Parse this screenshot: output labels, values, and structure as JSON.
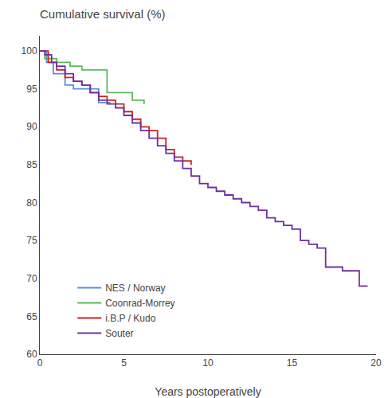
{
  "chart_data": {
    "type": "step",
    "title": "Cumulative survival (%)",
    "x_label": "Years postoperatively",
    "xlim": [
      0,
      20
    ],
    "ylim": [
      60,
      102
    ],
    "xticks": [
      0,
      5,
      10,
      15,
      20
    ],
    "yticks": [
      60,
      65,
      70,
      75,
      80,
      85,
      90,
      95,
      100
    ],
    "grid": false,
    "legend": "lower left",
    "series": [
      {
        "name": "NES / Norway",
        "color": "#5b8dd9",
        "x": [
          0,
          0.4,
          0.8,
          1.5,
          2.0,
          2.8,
          3.5,
          4.2
        ],
        "values": [
          100,
          98.5,
          97.0,
          95.5,
          95.0,
          95.0,
          93.2,
          93.2
        ]
      },
      {
        "name": "Coonrad-Morrey",
        "color": "#5cb85c",
        "x": [
          0,
          0.3,
          1.0,
          1.8,
          2.5,
          3.0,
          4.0,
          5.0,
          5.5,
          6.2
        ],
        "values": [
          100,
          99.0,
          98.5,
          98.0,
          97.5,
          97.5,
          94.5,
          94.5,
          93.5,
          93.0
        ]
      },
      {
        "name": "i.B.P / Kudo",
        "color": "#cc2222",
        "x": [
          0,
          0.5,
          1.0,
          1.5,
          2.0,
          2.5,
          3.0,
          3.5,
          4.0,
          4.5,
          5.0,
          5.5,
          6.0,
          6.5,
          7.0,
          7.5,
          8.0,
          8.5,
          9.0
        ],
        "values": [
          100,
          98.5,
          97.5,
          96.5,
          96.0,
          95.5,
          94.5,
          94.0,
          93.5,
          93.0,
          92.0,
          91.0,
          90.0,
          89.5,
          88.5,
          87.0,
          86.0,
          85.5,
          85.0
        ]
      },
      {
        "name": "Souter",
        "color": "#7030a0",
        "x": [
          0,
          0.3,
          0.7,
          1.0,
          1.5,
          2.0,
          2.5,
          3.0,
          3.5,
          4.0,
          4.5,
          5.0,
          5.5,
          6.0,
          6.5,
          7.0,
          7.5,
          8.0,
          8.5,
          9.0,
          9.5,
          10.0,
          10.5,
          11.0,
          11.5,
          12.0,
          12.5,
          13.0,
          13.5,
          14.0,
          14.5,
          15.0,
          15.5,
          16.0,
          16.5,
          17.0,
          18.0,
          19.0,
          19.5
        ],
        "values": [
          100,
          99.5,
          98.5,
          98.0,
          97.0,
          96.0,
          95.5,
          94.5,
          93.5,
          93.0,
          92.5,
          91.5,
          90.5,
          89.5,
          88.5,
          87.5,
          86.5,
          85.5,
          84.5,
          83.5,
          82.5,
          82.0,
          81.5,
          81.0,
          80.5,
          80.0,
          79.5,
          79.0,
          78.0,
          77.5,
          77.0,
          76.5,
          75.0,
          74.5,
          74.0,
          71.5,
          71.0,
          69.0,
          69.0
        ]
      }
    ]
  }
}
